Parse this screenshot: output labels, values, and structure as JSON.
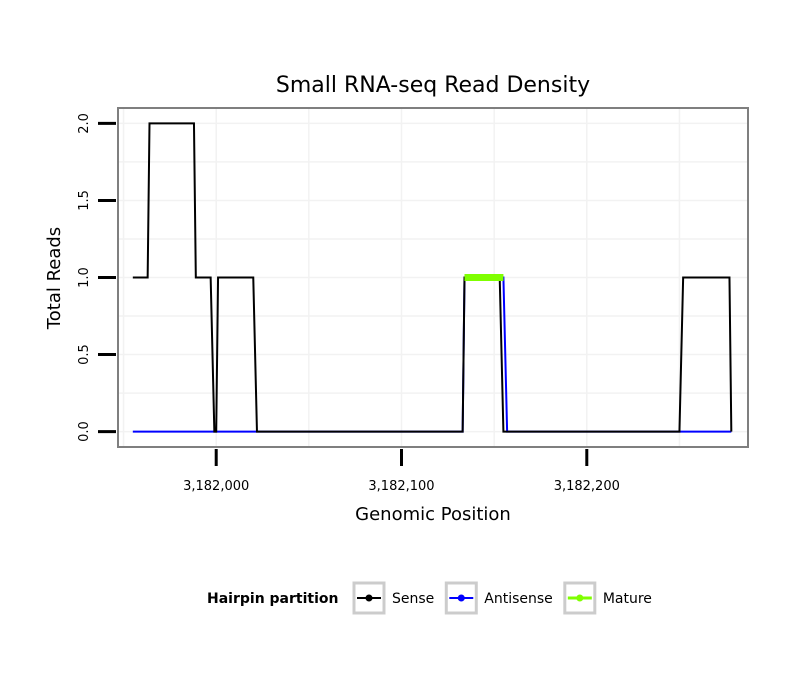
{
  "chart_data": {
    "type": "line",
    "title": "Small RNA-seq Read Density",
    "xlabel": "Genomic Position",
    "ylabel": "Total Reads",
    "xlim": [
      3181947,
      3182287
    ],
    "ylim": [
      -0.1,
      2.1
    ],
    "x_ticks": [
      {
        "value": 3182000,
        "label": "3,182,000"
      },
      {
        "value": 3182100,
        "label": "3,182,100"
      },
      {
        "value": 3182200,
        "label": "3,182,200"
      }
    ],
    "y_ticks": [
      {
        "value": 0,
        "label": "0.0"
      },
      {
        "value": 0.5,
        "label": "0.5"
      },
      {
        "value": 1,
        "label": "1.0"
      },
      {
        "value": 1.5,
        "label": "1.5"
      },
      {
        "value": 2,
        "label": "2.0"
      }
    ],
    "grid": true,
    "legend_position": "bottom",
    "legend_title": "Hairpin partition",
    "series": [
      {
        "name": "Sense",
        "color": "#000000",
        "points": [
          [
            3181955,
            1
          ],
          [
            3181963,
            1
          ],
          [
            3181964,
            2
          ],
          [
            3181988,
            2
          ],
          [
            3181989,
            1
          ],
          [
            3181997,
            1
          ],
          [
            3181999,
            0
          ],
          [
            3182000,
            0
          ],
          [
            3182001,
            1
          ],
          [
            3182020,
            1
          ],
          [
            3182022,
            0
          ],
          [
            3182133,
            0
          ],
          [
            3182134,
            1
          ],
          [
            3182153,
            1
          ],
          [
            3182155,
            0
          ],
          [
            3182250,
            0
          ],
          [
            3182252,
            1
          ],
          [
            3182277,
            1
          ],
          [
            3182278,
            0
          ]
        ]
      },
      {
        "name": "Antisense",
        "color": "#0000ff",
        "points": [
          [
            3181955,
            0
          ],
          [
            3182133,
            0
          ],
          [
            3182134,
            1
          ],
          [
            3182155,
            1
          ],
          [
            3182157,
            0
          ],
          [
            3182278,
            0
          ]
        ]
      },
      {
        "name": "Mature",
        "color": "#7fff00",
        "points": [
          [
            3182134,
            1
          ],
          [
            3182155,
            1
          ]
        ]
      }
    ]
  }
}
